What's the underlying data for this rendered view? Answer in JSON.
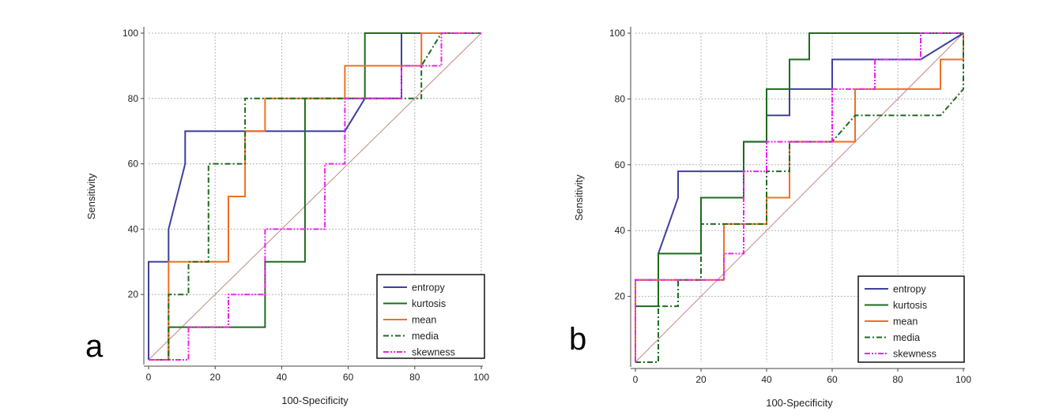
{
  "chart_data": [
    {
      "type": "line",
      "panel_label": "a",
      "xlabel": "100-Specificity",
      "ylabel": "Sensitivity",
      "xlim": [
        0,
        100
      ],
      "ylim": [
        0,
        100
      ],
      "xticks": [
        0,
        20,
        40,
        60,
        80,
        100
      ],
      "yticks": [
        20,
        40,
        60,
        80,
        100
      ],
      "xtick_labels": [
        "0",
        "20",
        "40",
        "60",
        "80",
        "100"
      ],
      "ytick_labels": [
        "20",
        "40",
        "60",
        "80",
        "100"
      ],
      "grid": true,
      "diagonal_reference": true,
      "legend_position": "bottom-right",
      "series": [
        {
          "name": "entropy",
          "color": "#3f3f9f",
          "dash": "solid",
          "points": [
            [
              0,
              0
            ],
            [
              0,
              30
            ],
            [
              6,
              30
            ],
            [
              6,
              40
            ],
            [
              11,
              60
            ],
            [
              11,
              70
            ],
            [
              59,
              70
            ],
            [
              65,
              80
            ],
            [
              76,
              80
            ],
            [
              76,
              100
            ],
            [
              100,
              100
            ]
          ]
        },
        {
          "name": "kurtosis",
          "color": "#1e6b1e",
          "dash": "solid",
          "points": [
            [
              0,
              0
            ],
            [
              6,
              0
            ],
            [
              6,
              10
            ],
            [
              35,
              10
            ],
            [
              35,
              30
            ],
            [
              47,
              30
            ],
            [
              47,
              80
            ],
            [
              65,
              80
            ],
            [
              65,
              100
            ],
            [
              100,
              100
            ]
          ]
        },
        {
          "name": "mean",
          "color": "#f07020",
          "dash": "solid",
          "points": [
            [
              0,
              0
            ],
            [
              6,
              0
            ],
            [
              6,
              30
            ],
            [
              24,
              30
            ],
            [
              24,
              50
            ],
            [
              29,
              50
            ],
            [
              29,
              70
            ],
            [
              35,
              70
            ],
            [
              35,
              80
            ],
            [
              59,
              80
            ],
            [
              59,
              90
            ],
            [
              82,
              90
            ],
            [
              82,
              100
            ],
            [
              100,
              100
            ]
          ]
        },
        {
          "name": "media",
          "color": "#1e6b1e",
          "dash": "dashdot",
          "points": [
            [
              0,
              0
            ],
            [
              6,
              0
            ],
            [
              6,
              20
            ],
            [
              12,
              20
            ],
            [
              12,
              30
            ],
            [
              18,
              30
            ],
            [
              18,
              60
            ],
            [
              29,
              60
            ],
            [
              29,
              80
            ],
            [
              82,
              80
            ],
            [
              82,
              90
            ],
            [
              88,
              100
            ],
            [
              100,
              100
            ]
          ]
        },
        {
          "name": "skewness",
          "color": "#ee22ee",
          "dash": "dashdotdot",
          "points": [
            [
              0,
              0
            ],
            [
              12,
              0
            ],
            [
              12,
              10
            ],
            [
              24,
              10
            ],
            [
              24,
              20
            ],
            [
              35,
              20
            ],
            [
              35,
              40
            ],
            [
              53,
              40
            ],
            [
              53,
              60
            ],
            [
              59,
              60
            ],
            [
              59,
              80
            ],
            [
              76,
              80
            ],
            [
              76,
              90
            ],
            [
              88,
              90
            ],
            [
              88,
              100
            ],
            [
              100,
              100
            ]
          ]
        }
      ]
    },
    {
      "type": "line",
      "panel_label": "b",
      "xlabel": "100-Specificity",
      "ylabel": "Sensitivity",
      "xlim": [
        0,
        100
      ],
      "ylim": [
        0,
        100
      ],
      "xticks": [
        0,
        20,
        40,
        60,
        80,
        100
      ],
      "yticks": [
        20,
        40,
        60,
        80,
        100
      ],
      "xtick_labels": [
        "0",
        "20",
        "40",
        "60",
        "80",
        "100"
      ],
      "ytick_labels": [
        "20",
        "40",
        "60",
        "80",
        "100"
      ],
      "grid": true,
      "diagonal_reference": true,
      "legend_position": "bottom-right",
      "series": [
        {
          "name": "entropy",
          "color": "#3f3f9f",
          "dash": "solid",
          "points": [
            [
              0,
              0
            ],
            [
              0,
              25
            ],
            [
              7,
              25
            ],
            [
              7,
              33
            ],
            [
              13,
              50
            ],
            [
              13,
              58
            ],
            [
              33,
              58
            ],
            [
              33,
              67
            ],
            [
              40,
              67
            ],
            [
              40,
              75
            ],
            [
              47,
              75
            ],
            [
              47,
              83
            ],
            [
              60,
              83
            ],
            [
              60,
              92
            ],
            [
              87,
              92
            ],
            [
              100,
              100
            ]
          ]
        },
        {
          "name": "kurtosis",
          "color": "#1e6b1e",
          "dash": "solid",
          "points": [
            [
              0,
              0
            ],
            [
              0,
              17
            ],
            [
              7,
              17
            ],
            [
              7,
              33
            ],
            [
              20,
              33
            ],
            [
              20,
              50
            ],
            [
              33,
              50
            ],
            [
              33,
              67
            ],
            [
              40,
              67
            ],
            [
              40,
              83
            ],
            [
              47,
              83
            ],
            [
              47,
              92
            ],
            [
              53,
              92
            ],
            [
              53,
              100
            ],
            [
              100,
              100
            ]
          ]
        },
        {
          "name": "mean",
          "color": "#f07020",
          "dash": "solid",
          "points": [
            [
              0,
              0
            ],
            [
              0,
              25
            ],
            [
              27,
              25
            ],
            [
              27,
              42
            ],
            [
              40,
              42
            ],
            [
              40,
              50
            ],
            [
              47,
              50
            ],
            [
              47,
              67
            ],
            [
              67,
              67
            ],
            [
              67,
              83
            ],
            [
              93,
              83
            ],
            [
              93,
              92
            ],
            [
              100,
              92
            ],
            [
              100,
              100
            ]
          ]
        },
        {
          "name": "media",
          "color": "#1e6b1e",
          "dash": "dashdot",
          "points": [
            [
              0,
              0
            ],
            [
              7,
              0
            ],
            [
              7,
              17
            ],
            [
              13,
              17
            ],
            [
              13,
              25
            ],
            [
              20,
              25
            ],
            [
              20,
              42
            ],
            [
              40,
              42
            ],
            [
              40,
              58
            ],
            [
              47,
              58
            ],
            [
              47,
              67
            ],
            [
              60,
              67
            ],
            [
              67,
              75
            ],
            [
              93,
              75
            ],
            [
              100,
              83
            ],
            [
              100,
              100
            ]
          ]
        },
        {
          "name": "skewness",
          "color": "#ee22ee",
          "dash": "dashdotdot",
          "points": [
            [
              0,
              0
            ],
            [
              0,
              25
            ],
            [
              27,
              25
            ],
            [
              27,
              33
            ],
            [
              33,
              33
            ],
            [
              33,
              58
            ],
            [
              40,
              58
            ],
            [
              40,
              67
            ],
            [
              60,
              67
            ],
            [
              60,
              83
            ],
            [
              73,
              83
            ],
            [
              73,
              92
            ],
            [
              87,
              92
            ],
            [
              87,
              100
            ],
            [
              100,
              100
            ]
          ]
        }
      ]
    }
  ]
}
